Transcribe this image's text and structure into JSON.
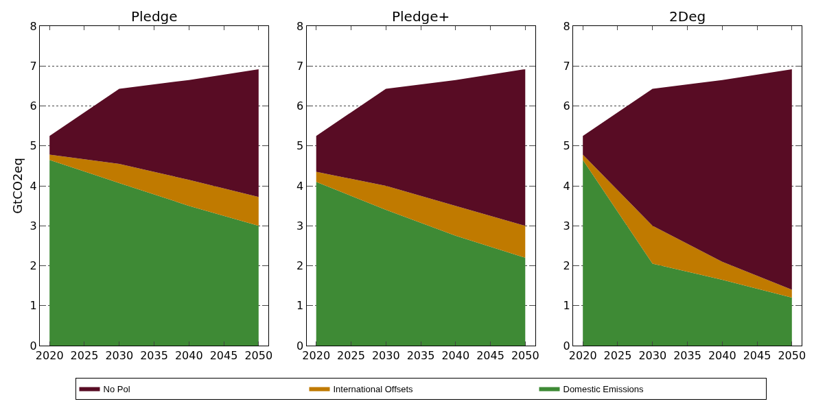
{
  "chart_data": [
    {
      "type": "area",
      "title": "Pledge",
      "ylabel": "GtCO2eq",
      "x": [
        2020,
        2030,
        2040,
        2050
      ],
      "stacked": true,
      "xlim": [
        2018.6,
        2051.4
      ],
      "xticks": [
        2020,
        2025,
        2030,
        2035,
        2040,
        2045,
        2050
      ],
      "ylim": [
        0,
        8
      ],
      "yticks": [
        0,
        1,
        2,
        3,
        4,
        5,
        6,
        7,
        8
      ],
      "grid": "y",
      "legend": "bottom",
      "series": [
        {
          "name": "Domestic Emissions",
          "color": "#3e8a35",
          "values": [
            4.65,
            4.07,
            3.5,
            3.0
          ]
        },
        {
          "name": "International Offsets",
          "color": "#c07a00",
          "values": [
            0.13,
            0.48,
            0.65,
            0.72
          ]
        },
        {
          "name": "No Pol",
          "color": "#580c24",
          "values": [
            0.47,
            1.88,
            2.5,
            3.2
          ]
        }
      ]
    },
    {
      "type": "area",
      "title": "Pledge+",
      "x": [
        2020,
        2030,
        2040,
        2050
      ],
      "stacked": true,
      "xlim": [
        2018.6,
        2051.4
      ],
      "xticks": [
        2020,
        2025,
        2030,
        2035,
        2040,
        2045,
        2050
      ],
      "ylim": [
        0,
        8
      ],
      "yticks": [
        0,
        1,
        2,
        3,
        4,
        5,
        6,
        7,
        8
      ],
      "grid": "y",
      "legend": "bottom",
      "series": [
        {
          "name": "Domestic Emissions",
          "color": "#3e8a35",
          "values": [
            4.1,
            3.4,
            2.75,
            2.2
          ]
        },
        {
          "name": "International Offsets",
          "color": "#c07a00",
          "values": [
            0.25,
            0.6,
            0.75,
            0.8
          ]
        },
        {
          "name": "No Pol",
          "color": "#580c24",
          "values": [
            0.9,
            2.43,
            3.15,
            3.92
          ]
        }
      ]
    },
    {
      "type": "area",
      "title": "2Deg",
      "x": [
        2020,
        2030,
        2040,
        2050
      ],
      "stacked": true,
      "xlim": [
        2018.6,
        2051.4
      ],
      "xticks": [
        2020,
        2025,
        2030,
        2035,
        2040,
        2045,
        2050
      ],
      "ylim": [
        0,
        8
      ],
      "yticks": [
        0,
        1,
        2,
        3,
        4,
        5,
        6,
        7,
        8
      ],
      "grid": "y",
      "legend": "bottom",
      "series": [
        {
          "name": "Domestic Emissions",
          "color": "#3e8a35",
          "values": [
            4.65,
            2.05,
            1.65,
            1.2
          ]
        },
        {
          "name": "International Offsets",
          "color": "#c07a00",
          "values": [
            0.13,
            0.95,
            0.45,
            0.2
          ]
        },
        {
          "name": "No Pol",
          "color": "#580c24",
          "values": [
            0.47,
            3.43,
            4.55,
            5.52
          ]
        }
      ]
    }
  ]
}
